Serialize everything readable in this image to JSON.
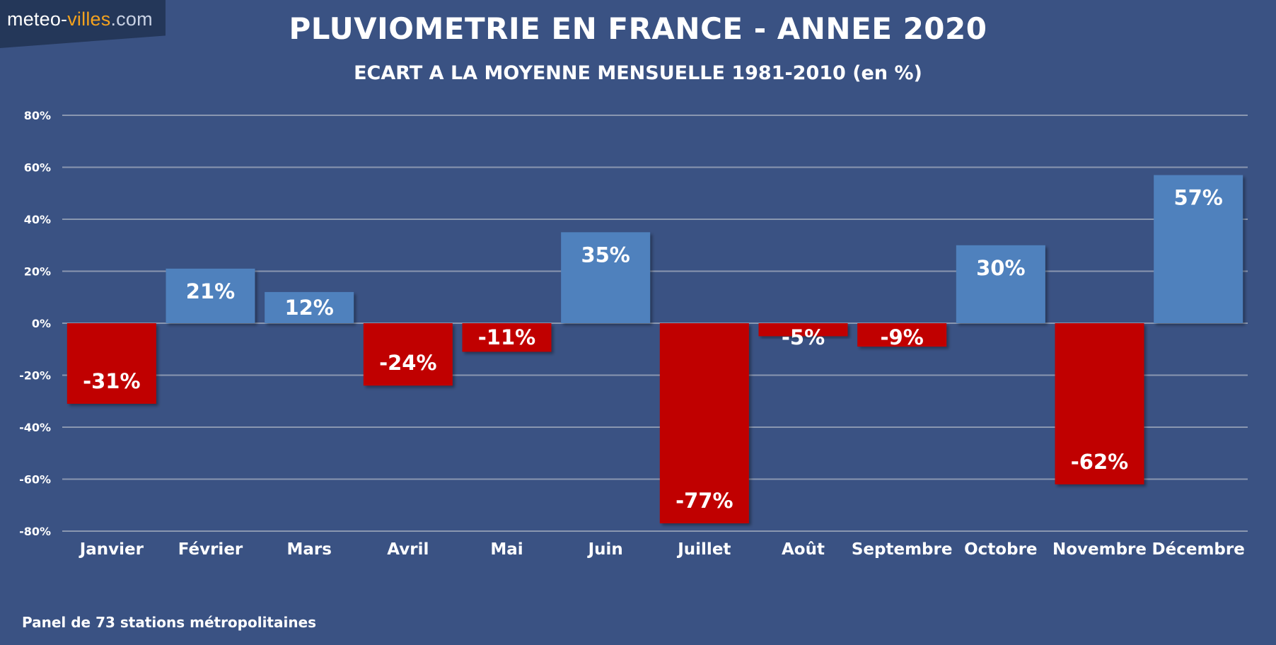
{
  "logo": {
    "part1": "meteo-",
    "part2": "villes",
    "part3": ".com"
  },
  "colors": {
    "background": "#3a5283",
    "positive": "#4f81bd",
    "negative": "#c00000",
    "grid": "#8a97b0",
    "logo_accent": "#f4a21e"
  },
  "footnote": "Panel de 73 stations métropolitaines",
  "chart_data": {
    "type": "bar",
    "title": "PLUVIOMETRIE EN FRANCE - ANNEE 2020",
    "subtitle": "ECART A LA MOYENNE MENSUELLE 1981-2010 (en %)",
    "categories": [
      "Janvier",
      "Février",
      "Mars",
      "Avril",
      "Mai",
      "Juin",
      "Juillet",
      "Août",
      "Septembre",
      "Octobre",
      "Novembre",
      "Décembre"
    ],
    "values": [
      -31,
      21,
      12,
      -24,
      -11,
      35,
      -77,
      -5,
      -9,
      30,
      -62,
      57
    ],
    "value_labels": [
      "-31%",
      "21%",
      "12%",
      "-24%",
      "-11%",
      "35%",
      "-77%",
      "-5%",
      "-9%",
      "30%",
      "-62%",
      "57%"
    ],
    "ylim": [
      -80,
      80
    ],
    "yticks": [
      80,
      60,
      40,
      20,
      0,
      -20,
      -40,
      -60,
      -80
    ],
    "ytick_labels": [
      "80%",
      "60%",
      "40%",
      "20%",
      "0%",
      "-20%",
      "-40%",
      "-60%",
      "-80%"
    ],
    "grid": true,
    "legend": "none"
  }
}
